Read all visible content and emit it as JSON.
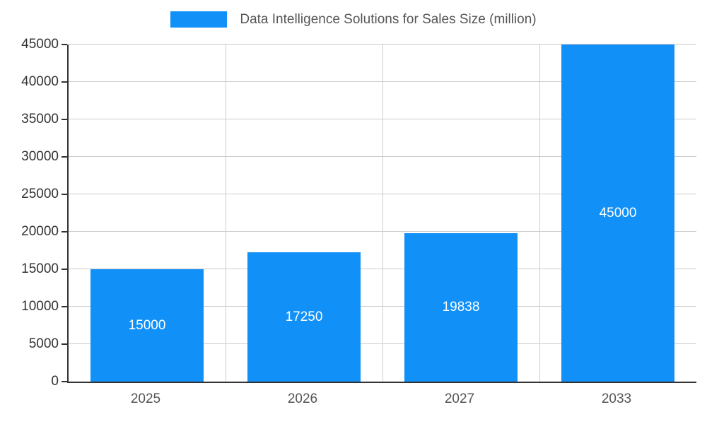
{
  "chart_data": {
    "type": "bar",
    "title": "Data Intelligence Solutions for Sales Size (million)",
    "categories": [
      "2025",
      "2026",
      "2027",
      "2033"
    ],
    "values": [
      15000,
      17250,
      19838,
      45000
    ],
    "data_labels": [
      "15000",
      "17250",
      "19838",
      "45000"
    ],
    "xlabel": "",
    "ylabel": "",
    "ylim": [
      0,
      45000
    ],
    "yticks": [
      0,
      5000,
      10000,
      15000,
      20000,
      25000,
      30000,
      35000,
      40000,
      45000
    ],
    "grid": true,
    "legend_position": "top",
    "colors": {
      "bar": "#1190f8",
      "grid": "#cccccc",
      "axis": "#333333",
      "title_text": "#555555",
      "y_tick_text": "#333333",
      "x_tick_text": "#555555",
      "bar_label_text": "#ffffff",
      "background": "#ffffff"
    }
  }
}
